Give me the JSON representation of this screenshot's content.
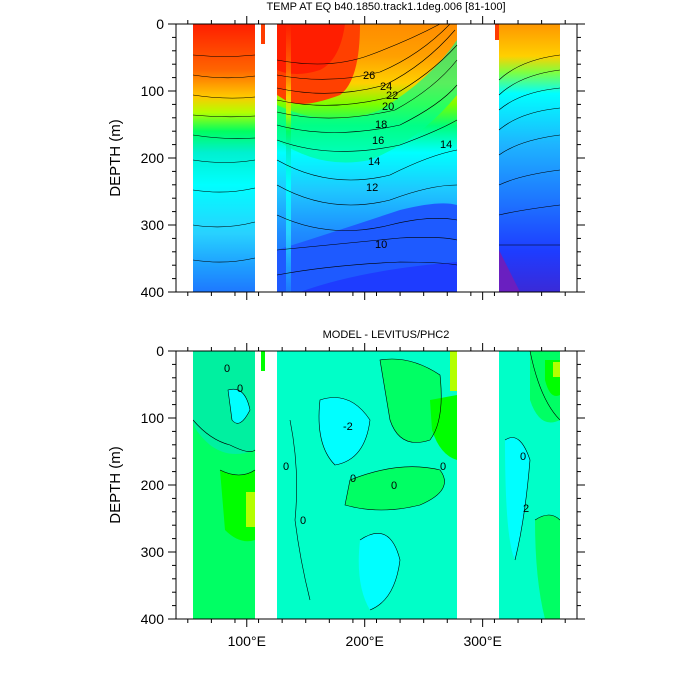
{
  "chart_data": [
    {
      "type": "contour",
      "title": "TEMP AT EQ b40.1850.track1.1deg.006 [81-100]",
      "ylabel": "DEPTH (m)",
      "y_tick_labels": [
        "0",
        "100",
        "200",
        "300",
        "400"
      ],
      "y_ticks": [
        0,
        100,
        200,
        300,
        400
      ],
      "ylim": [
        0,
        400
      ],
      "y_reversed": true,
      "contour_labels": [
        "26",
        "24",
        "22",
        "20",
        "18",
        "16",
        "14",
        "14",
        "12",
        "10"
      ],
      "contour_levels": [
        10,
        12,
        14,
        16,
        18,
        20,
        22,
        24,
        26
      ],
      "colors": [
        "#6a1fc0",
        "#1b3cff",
        "#1e6cff",
        "#1e96ff",
        "#1eb9ff",
        "#28e6ff",
        "#00ffff",
        "#00ff96",
        "#00ff00",
        "#b4ff00",
        "#ffff00",
        "#ffc800",
        "#ff9600",
        "#ff6400",
        "#ff0000"
      ]
    },
    {
      "type": "contour",
      "title": "MODEL - LEVITUS/PHC2",
      "ylabel": "DEPTH (m)",
      "xlabel": "",
      "x_tick_labels": [
        "100°E",
        "200°E",
        "300°E"
      ],
      "x_ticks": [
        100,
        200,
        300
      ],
      "xlim": [
        40,
        380
      ],
      "y_tick_labels": [
        "0",
        "100",
        "200",
        "300",
        "400"
      ],
      "y_ticks": [
        0,
        100,
        200,
        300,
        400
      ],
      "ylim": [
        0,
        400
      ],
      "y_reversed": true,
      "contour_labels": [
        "0",
        "0",
        "-2",
        "0",
        "0",
        "0",
        "0",
        "0",
        "2",
        "0"
      ],
      "colors": [
        "#00ffc8",
        "#00ffff",
        "#00ff64",
        "#00ff00",
        "#b4ff00",
        "#ffff00"
      ]
    }
  ]
}
